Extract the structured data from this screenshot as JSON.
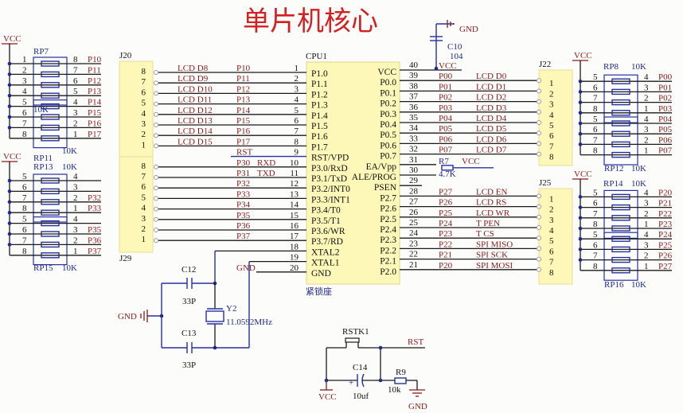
{
  "title": "单片机核心",
  "colors": {
    "title": "#d42020",
    "net_label": "#8b1a1a",
    "wire": "#1a1a1a",
    "component": "#2630a0",
    "header_fill": "#fdf7b8"
  },
  "cpu": {
    "ref": "CPU1",
    "footprint": "紧锁座",
    "left_pins": [
      {
        "num": "1",
        "name": "P1.0"
      },
      {
        "num": "2",
        "name": "P1.1"
      },
      {
        "num": "3",
        "name": "P1.2"
      },
      {
        "num": "4",
        "name": "P1.3"
      },
      {
        "num": "5",
        "name": "P1.4"
      },
      {
        "num": "6",
        "name": "P1.5"
      },
      {
        "num": "7",
        "name": "P1.6"
      },
      {
        "num": "8",
        "name": "P1.7"
      },
      {
        "num": "9",
        "name": "RST/VPD"
      },
      {
        "num": "10",
        "name": "P3.0/RxD"
      },
      {
        "num": "11",
        "name": "P3.1/TxD"
      },
      {
        "num": "12",
        "name": "P3.2/INT0"
      },
      {
        "num": "13",
        "name": "P3.3/INT1"
      },
      {
        "num": "14",
        "name": "P3.4/T0"
      },
      {
        "num": "15",
        "name": "P3.5/T1"
      },
      {
        "num": "16",
        "name": "P3.6/WR"
      },
      {
        "num": "17",
        "name": "P3.7/RD"
      },
      {
        "num": "18",
        "name": "XTAL2"
      },
      {
        "num": "19",
        "name": "XTAL1"
      },
      {
        "num": "20",
        "name": "GND"
      }
    ],
    "right_pins": [
      {
        "num": "40",
        "name": "VCC"
      },
      {
        "num": "39",
        "name": "P0.0"
      },
      {
        "num": "38",
        "name": "P0.1"
      },
      {
        "num": "37",
        "name": "P0.2"
      },
      {
        "num": "36",
        "name": "P0.3"
      },
      {
        "num": "35",
        "name": "P0.4"
      },
      {
        "num": "34",
        "name": "P0.5"
      },
      {
        "num": "33",
        "name": "P0.6"
      },
      {
        "num": "32",
        "name": "P0.7"
      },
      {
        "num": "31",
        "name": "EA/Vpp"
      },
      {
        "num": "30",
        "name": "ALE/PROG"
      },
      {
        "num": "29",
        "name": "PSEN"
      },
      {
        "num": "28",
        "name": "P2.7"
      },
      {
        "num": "27",
        "name": "P2.6"
      },
      {
        "num": "26",
        "name": "P2.5"
      },
      {
        "num": "25",
        "name": "P2.4"
      },
      {
        "num": "24",
        "name": "P2.3"
      },
      {
        "num": "23",
        "name": "P2.2"
      },
      {
        "num": "22",
        "name": "P2.1"
      },
      {
        "num": "21",
        "name": "P2.0"
      }
    ]
  },
  "left_nets": [
    {
      "signal": "LCD D8",
      "port": "P10"
    },
    {
      "signal": "LCD D9",
      "port": "P11"
    },
    {
      "signal": "LCD D10",
      "port": "P12"
    },
    {
      "signal": "LCD D11",
      "port": "P13"
    },
    {
      "signal": "LCD D12",
      "port": "P14"
    },
    {
      "signal": "LCD D13",
      "port": "P15"
    },
    {
      "signal": "LCD D14",
      "port": "P16"
    },
    {
      "signal": "LCD D15",
      "port": "P17"
    },
    {
      "signal": "",
      "port": "RST"
    },
    {
      "signal": "RXD",
      "port": "P30"
    },
    {
      "signal": "TXD",
      "port": "P31"
    },
    {
      "signal": "",
      "port": "P32"
    },
    {
      "signal": "",
      "port": "P33"
    },
    {
      "signal": "",
      "port": "P34"
    },
    {
      "signal": "",
      "port": "P35"
    },
    {
      "signal": "",
      "port": "P36"
    },
    {
      "signal": "",
      "port": "P37"
    },
    {
      "signal": "",
      "port": ""
    },
    {
      "signal": "",
      "port": ""
    },
    {
      "signal": "",
      "port": "GND"
    }
  ],
  "right_nets": [
    {
      "port": "VCC",
      "signal": ""
    },
    {
      "port": "P00",
      "signal": "LCD D0"
    },
    {
      "port": "P01",
      "signal": "LCD D1"
    },
    {
      "port": "P02",
      "signal": "LCD D2"
    },
    {
      "port": "P03",
      "signal": "LCD D3"
    },
    {
      "port": "P04",
      "signal": "LCD D4"
    },
    {
      "port": "P05",
      "signal": "LCD D5"
    },
    {
      "port": "P06",
      "signal": "LCD D6"
    },
    {
      "port": "P07",
      "signal": "LCD D7"
    },
    {
      "port": "",
      "signal": ""
    },
    {
      "port": "",
      "signal": ""
    },
    {
      "port": "",
      "signal": ""
    },
    {
      "port": "P27",
      "signal": "LCD EN"
    },
    {
      "port": "P26",
      "signal": "LCD RS"
    },
    {
      "port": "P25",
      "signal": "LCD WR"
    },
    {
      "port": "P24",
      "signal": "T PEN"
    },
    {
      "port": "P23",
      "signal": "T CS"
    },
    {
      "port": "P22",
      "signal": "SPI MISO"
    },
    {
      "port": "P21",
      "signal": "SPI SCK"
    },
    {
      "port": "P20",
      "signal": "SPI MOSI"
    }
  ],
  "headers": [
    {
      "ref": "J20",
      "pins": [
        "8",
        "7",
        "6",
        "5",
        "4",
        "3",
        "2",
        "1"
      ]
    },
    {
      "ref": "J29",
      "pins": [
        "8",
        "7",
        "6",
        "5",
        "4",
        "3",
        "2",
        "1"
      ]
    },
    {
      "ref": "J22",
      "pins": [
        "1",
        "2",
        "3",
        "4",
        "5",
        "6",
        "7",
        "8"
      ]
    },
    {
      "ref": "J25",
      "pins": [
        "1",
        "2",
        "3",
        "4",
        "5",
        "6",
        "7",
        "8"
      ]
    }
  ],
  "resistor_networks": [
    {
      "supply": "VCC",
      "top_ref": "RP7",
      "top_value": "10K",
      "bottom_ref": "RP11",
      "bottom_value": "10K",
      "left_pins": [
        "1",
        "2",
        "3",
        "4",
        "5",
        "6",
        "7",
        "8"
      ],
      "right_pins": [
        "8",
        "7",
        "6",
        "5",
        "4",
        "3",
        "2",
        "1"
      ],
      "nets": [
        "P10",
        "P11",
        "P12",
        "P13",
        "P14",
        "P15",
        "P16",
        "P17"
      ]
    },
    {
      "supply": "VCC",
      "top_ref": "RP13",
      "top_value": "10K",
      "bottom_ref": "RP15",
      "bottom_value": "10K",
      "left_pins": [
        "5",
        "6",
        "7",
        "8",
        "5",
        "6",
        "7",
        "8"
      ],
      "right_pins": [
        "4",
        "3",
        "2",
        "1",
        "4",
        "3",
        "2",
        "1"
      ],
      "nets": [
        "",
        "",
        "P32",
        "P33",
        "",
        "P35",
        "P36",
        "P37"
      ]
    },
    {
      "supply": "VCC",
      "top_ref": "RP8",
      "top_value": "10K",
      "bottom_ref": "RP12",
      "bottom_value": "10K",
      "left_pins": [
        "5",
        "6",
        "7",
        "8",
        "5",
        "6",
        "7",
        "8"
      ],
      "right_pins": [
        "4",
        "3",
        "2",
        "1",
        "4",
        "3",
        "2",
        "1"
      ],
      "nets": [
        "P00",
        "P01",
        "P02",
        "P03",
        "P04",
        "P05",
        "P06",
        "P07"
      ]
    },
    {
      "supply": "VCC",
      "top_ref": "RP14",
      "top_value": "10K",
      "bottom_ref": "RP16",
      "bottom_value": "10K",
      "left_pins": [
        "5",
        "6",
        "7",
        "8",
        "5",
        "6",
        "7",
        "8"
      ],
      "right_pins": [
        "4",
        "3",
        "2",
        "1",
        "4",
        "3",
        "2",
        "1"
      ],
      "nets": [
        "P20",
        "P21",
        "P22",
        "P23",
        "P24",
        "P25",
        "P26",
        "P27"
      ]
    }
  ],
  "c10": {
    "ref": "C10",
    "value": "104",
    "net": "GND"
  },
  "r7": {
    "ref": "R7",
    "value": "4.7K",
    "net": "VCC"
  },
  "crystal": {
    "c12_ref": "C12",
    "c12_value": "33P",
    "c13_ref": "C13",
    "c13_value": "33P",
    "y_ref": "Y2",
    "y_value": "11.0592MHz",
    "gnd": "GND"
  },
  "reset": {
    "switch_ref": "RSTK1",
    "net": "RST",
    "cap_ref": "C14",
    "cap_value": "10uf",
    "cap_polarity": "+",
    "res_ref": "R9",
    "res_value": "10k",
    "vcc": "VCC",
    "gnd": "GND"
  }
}
